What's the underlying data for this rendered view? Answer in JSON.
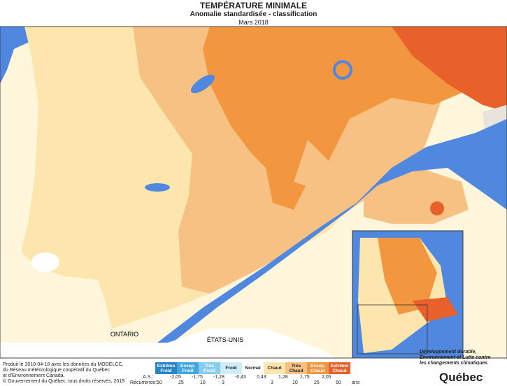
{
  "header": {
    "title": "TEMPÉRATURE MINIMALE",
    "subtitle": "Anomalie standardisée - classification",
    "date": "Mars 2018"
  },
  "map_labels": {
    "west": "ONTARIO",
    "south": "ÉTATS-UNIS"
  },
  "legend": {
    "classes": [
      {
        "label": "Extrême Froid",
        "color": "#2a84c8"
      },
      {
        "label": "Excep. Froid",
        "color": "#45a7df"
      },
      {
        "label": "Très Froid",
        "color": "#86cdee"
      },
      {
        "label": "Froid",
        "color": "#cdeef9"
      },
      {
        "label": "Normal",
        "color": "#ffffff"
      },
      {
        "label": "Chaud",
        "color": "#fde6ae"
      },
      {
        "label": "Très Chaud",
        "color": "#f8c184"
      },
      {
        "label": "Excep. Chaud",
        "color": "#f2963f"
      },
      {
        "label": "Extrême Chaud",
        "color": "#e8602a"
      }
    ],
    "as_label": "A.S.:",
    "thresholds": [
      "-2,05",
      "-1,75",
      "-1,28",
      "-0,43",
      "0,43",
      "1,28",
      "1,75",
      "2,05"
    ],
    "recurrence_label": "Récurrence:",
    "recurrence": [
      "50",
      "25",
      "10",
      "3",
      "3",
      "10",
      "25",
      "50"
    ],
    "recurrence_unit": "ans"
  },
  "footer": {
    "credits": [
      "Produit le 2018-04-18 avec les données du MODELCC,",
      "du Réseau météorologique coopératif du Québec",
      "et d'Environnement Canada."
    ],
    "copyright": "© Gouvernement du Québec, tous droits réservés, 2018"
  },
  "logo": {
    "ministry": "Développement durable, Environnement et Lutte contre les changements climatiques",
    "brand": "Québec"
  }
}
